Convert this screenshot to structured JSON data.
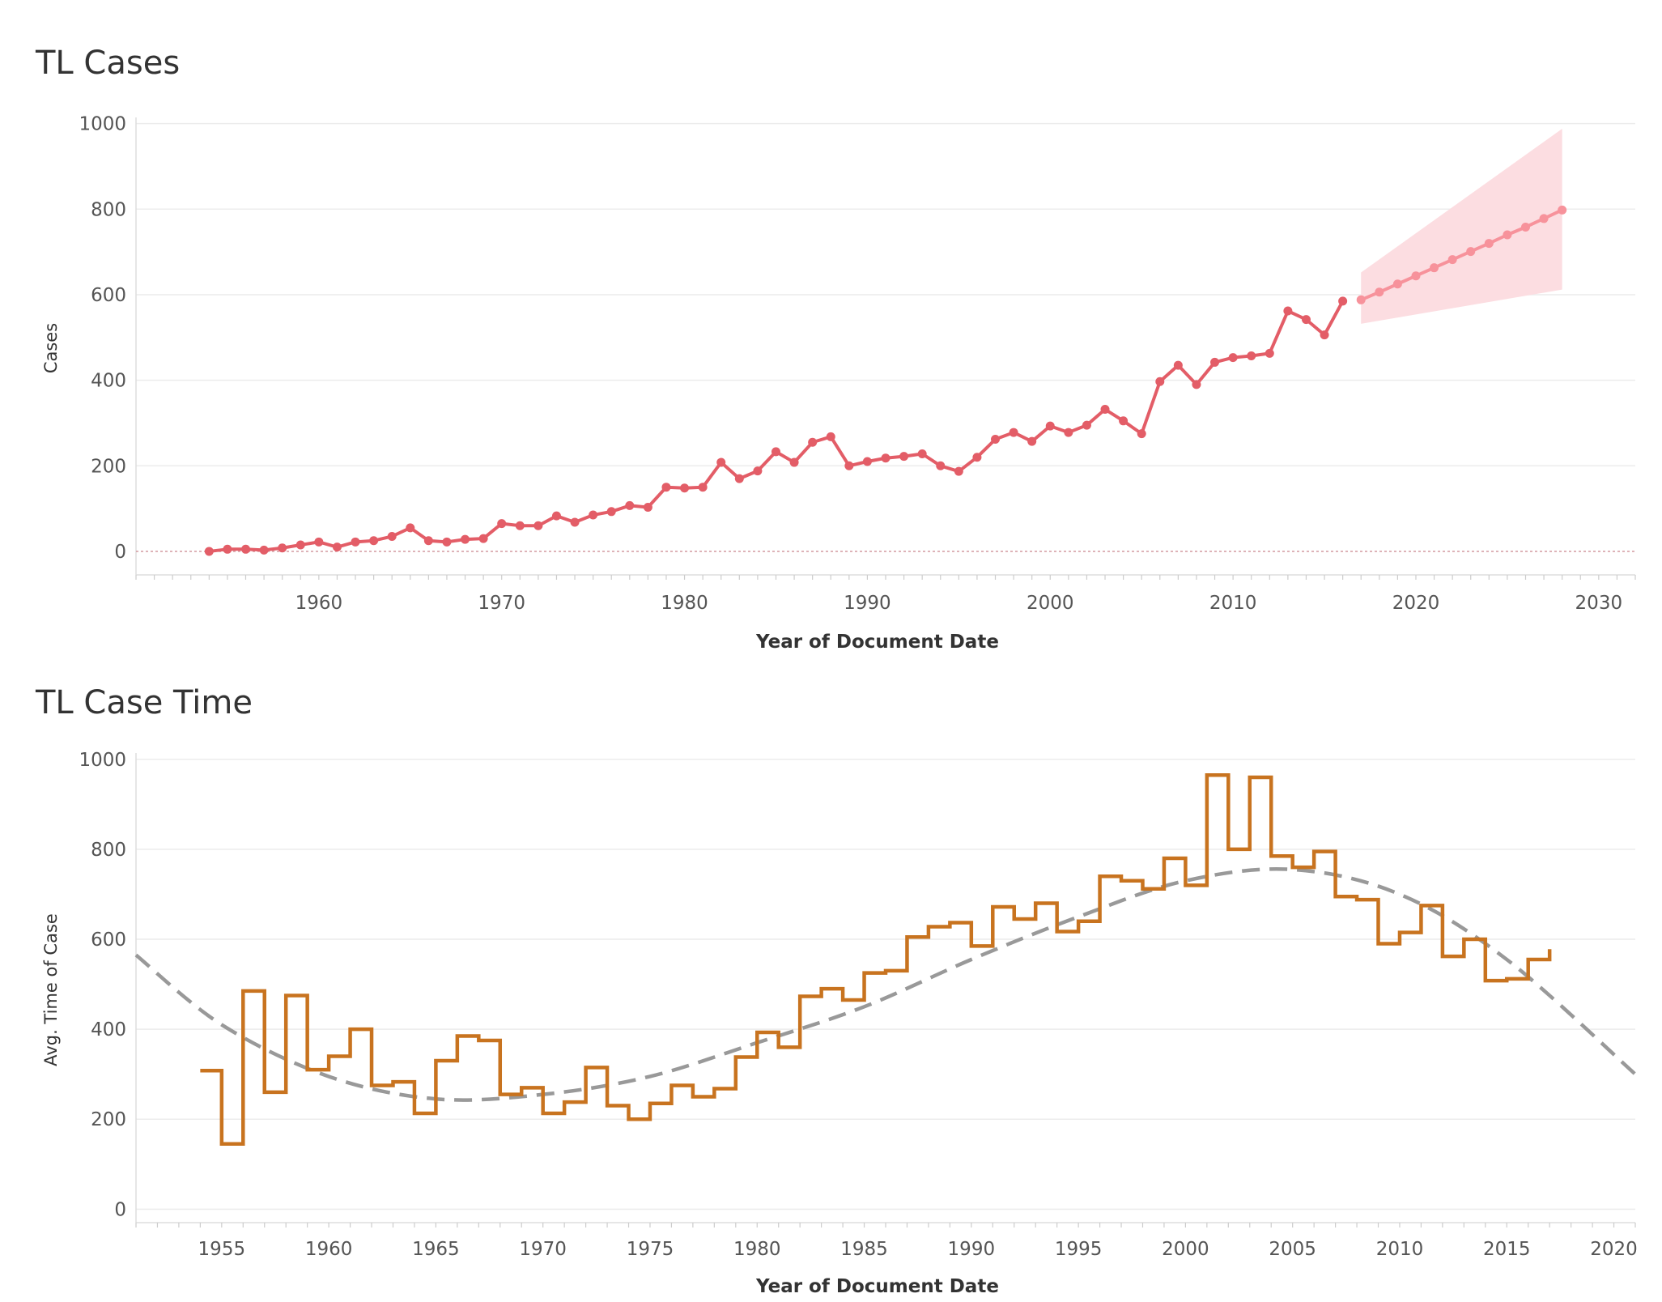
{
  "charts": [
    {
      "title": "TL Cases",
      "type": "line",
      "xlabel": "Year of Document Date",
      "ylabel": "Cases",
      "xlim": [
        1950,
        2032
      ],
      "ylim": [
        -55,
        1005
      ],
      "xticks": [
        1960,
        1970,
        1980,
        1990,
        2000,
        2010,
        2020,
        2030
      ],
      "yticks": [
        0,
        200,
        400,
        600,
        800,
        1000
      ],
      "colors": {
        "actual": "#e35d67",
        "forecast": "#f7929b",
        "band": "#fcdde1",
        "zero_line": "#d39aa0",
        "grid": "#ececec"
      },
      "chart_data": {
        "type": "line",
        "series": [
          {
            "x": [
              1954,
              1955,
              1956,
              1957,
              1958,
              1959,
              1960,
              1961,
              1962,
              1963,
              1964,
              1965,
              1966,
              1967,
              1968,
              1969,
              1970,
              1971,
              1972,
              1973,
              1974,
              1975,
              1976,
              1977,
              1978,
              1979,
              1980,
              1981,
              1982,
              1983,
              1984,
              1985,
              1986,
              1987,
              1988,
              1989,
              1990,
              1991,
              1992,
              1993,
              1994,
              1995,
              1996,
              1997,
              1998,
              1999,
              2000,
              2001,
              2002,
              2003,
              2004,
              2005,
              2006,
              2007,
              2008,
              2009,
              2010,
              2011,
              2012,
              2013,
              2014,
              2015,
              2016
            ],
            "values": [
              0,
              5,
              5,
              3,
              8,
              15,
              22,
              10,
              22,
              25,
              35,
              55,
              25,
              22,
              28,
              30,
              65,
              60,
              60,
              83,
              68,
              85,
              93,
              107,
              103,
              150,
              148,
              150,
              208,
              170,
              188,
              233,
              208,
              255,
              268,
              200,
              210,
              218,
              222,
              228,
              200,
              187,
              220,
              262,
              278,
              257,
              293,
              278,
              295,
              332,
              305,
              275,
              397,
              435,
              390,
              442,
              453,
              457,
              463,
              562,
              542,
              506,
              585
            ]
          },
          {
            "x": [
              2017,
              2018,
              2019,
              2020,
              2021,
              2022,
              2023,
              2024,
              2025,
              2026,
              2027,
              2028
            ],
            "values": [
              588,
              606,
              625,
              644,
              663,
              682,
              701,
              720,
              740,
              758,
              778,
              798
            ]
          }
        ],
        "band": {
          "x": [
            2017,
            2028
          ],
          "upper": [
            652,
            988
          ],
          "lower": [
            532,
            612
          ]
        }
      }
    },
    {
      "title": "TL Case Time",
      "type": "line",
      "xlabel": "Year of Document Date",
      "ylabel": "Avg. Time of Case",
      "xlim": [
        1951,
        2021
      ],
      "ylim": [
        -30,
        1005
      ],
      "xticks": [
        1955,
        1960,
        1965,
        1970,
        1975,
        1980,
        1985,
        1990,
        1995,
        2000,
        2005,
        2010,
        2015,
        2020
      ],
      "yticks": [
        0,
        200,
        400,
        600,
        800,
        1000
      ],
      "colors": {
        "step": "#c8731f",
        "trend": "#999999",
        "grid": "#ececec"
      },
      "chart_data": {
        "type": "line",
        "series": [
          {
            "x": [
              1954,
              1955,
              1956,
              1957,
              1958,
              1959,
              1960,
              1961,
              1962,
              1963,
              1964,
              1965,
              1966,
              1967,
              1968,
              1969,
              1970,
              1971,
              1972,
              1973,
              1974,
              1975,
              1976,
              1977,
              1978,
              1979,
              1980,
              1981,
              1982,
              1983,
              1984,
              1985,
              1986,
              1987,
              1988,
              1989,
              1990,
              1991,
              1992,
              1993,
              1994,
              1995,
              1996,
              1997,
              1998,
              1999,
              2000,
              2001,
              2002,
              2003,
              2004,
              2005,
              2006,
              2007,
              2008,
              2009,
              2010,
              2011,
              2012,
              2013,
              2014,
              2015,
              2016,
              2017
            ],
            "values": [
              308,
              145,
              485,
              260,
              475,
              310,
              340,
              400,
              275,
              283,
              213,
              330,
              385,
              375,
              255,
              270,
              213,
              238,
              315,
              230,
              200,
              235,
              275,
              250,
              268,
              338,
              393,
              360,
              473,
              490,
              465,
              525,
              530,
              605,
              628,
              637,
              585,
              672,
              645,
              680,
              617,
              640,
              740,
              730,
              712,
              780,
              720,
              965,
              800,
              960,
              785,
              760,
              795,
              695,
              688,
              590,
              615,
              675,
              562,
              600,
              508,
              512,
              555,
              578
            ]
          }
        ],
        "trend": {
          "x": [
            1951,
            1955,
            1960,
            1965,
            1970,
            1975,
            1980,
            1985,
            1990,
            1995,
            2000,
            2005,
            2010,
            2015,
            2021
          ],
          "values": [
            565,
            410,
            295,
            245,
            255,
            295,
            370,
            450,
            555,
            650,
            730,
            755,
            700,
            555,
            300
          ]
        }
      }
    }
  ]
}
